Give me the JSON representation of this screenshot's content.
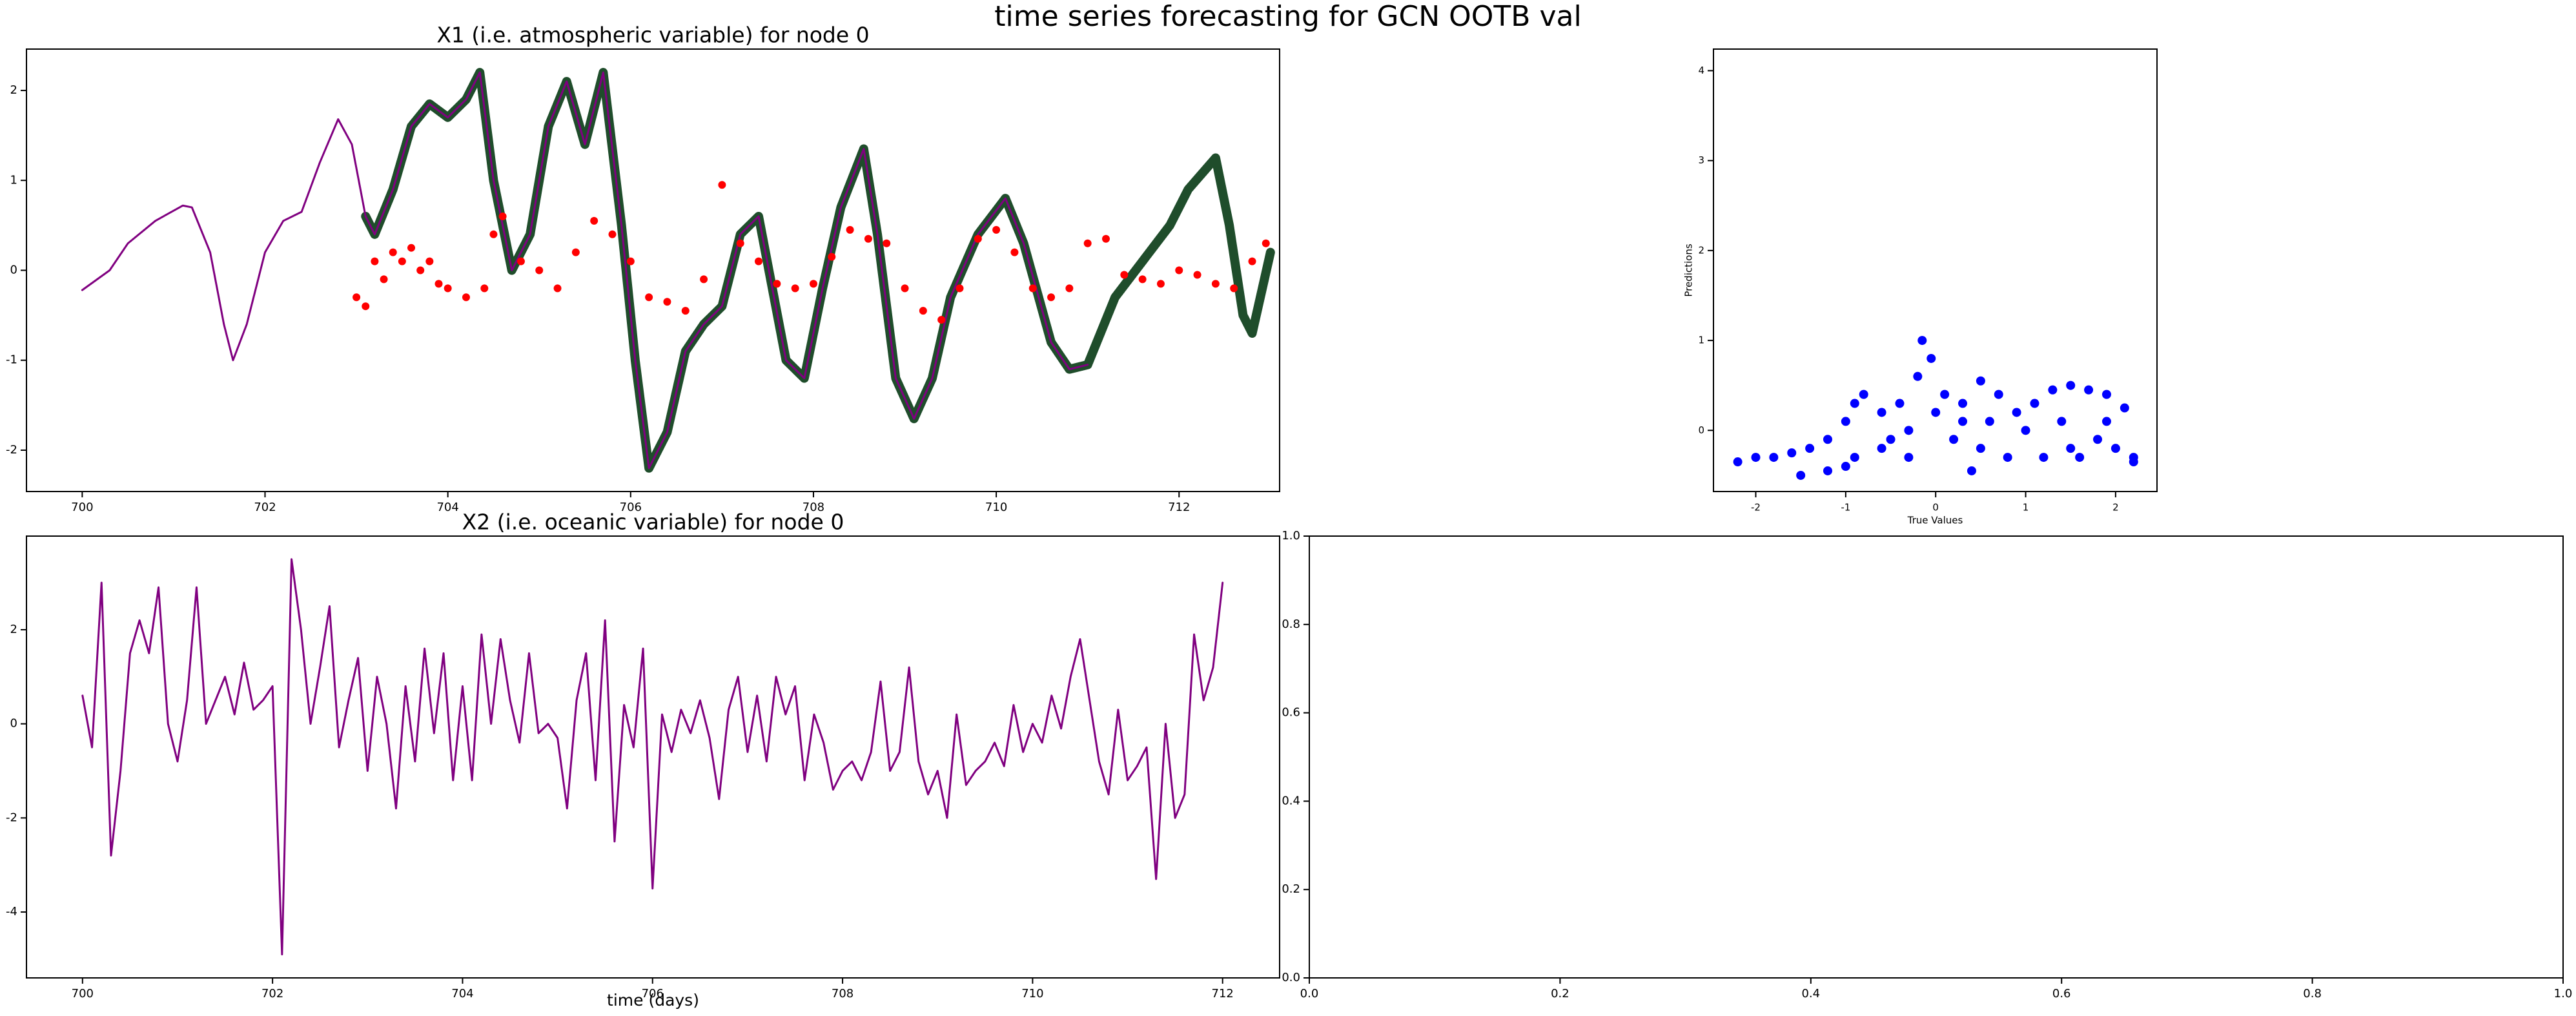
{
  "title": "time series forecasting for GCN OOTB val",
  "chart_data": [
    {
      "type": "line",
      "title": "X1 (i.e. atmospheric variable) for node 0",
      "xlim": [
        699.39,
        713.1
      ],
      "ylim": [
        -2.46,
        2.46
      ],
      "xticks": [
        700,
        702,
        704,
        706,
        708,
        710,
        712
      ],
      "yticks": [
        -2,
        -1,
        0,
        1,
        2
      ],
      "series": [
        {
          "type": "line",
          "color": "#1f4d2b",
          "width": 14,
          "x": [
            703.1,
            703.2,
            703.4,
            703.6,
            703.8,
            704.0,
            704.2,
            704.35,
            704.5,
            704.7,
            704.9,
            705.1,
            705.3,
            705.5,
            705.7,
            705.9,
            706.05,
            706.2,
            706.4,
            706.6,
            706.8,
            707.0,
            707.2,
            707.4,
            707.7,
            707.9,
            708.1,
            708.3,
            708.55,
            708.7,
            708.9,
            709.1,
            709.3,
            709.5,
            709.8,
            710.1,
            710.3,
            710.6,
            710.8,
            711.0,
            711.3,
            711.6,
            711.9,
            712.1,
            712.4,
            712.55,
            712.7,
            712.8,
            713.0
          ],
          "values": [
            0.6,
            0.4,
            0.9,
            1.6,
            1.85,
            1.7,
            1.9,
            2.2,
            1.0,
            0.0,
            0.4,
            1.6,
            2.1,
            1.4,
            2.2,
            0.5,
            -1.0,
            -2.2,
            -1.8,
            -0.9,
            -0.6,
            -0.4,
            0.4,
            0.6,
            -1.0,
            -1.2,
            -0.2,
            0.7,
            1.35,
            0.4,
            -1.2,
            -1.65,
            -1.2,
            -0.3,
            0.4,
            0.8,
            0.3,
            -0.8,
            -1.1,
            -1.05,
            -0.3,
            0.1,
            0.5,
            0.9,
            1.25,
            0.5,
            -0.5,
            -0.7,
            0.2
          ]
        },
        {
          "type": "line",
          "color": "#800080",
          "width": 3,
          "x": [
            700.0,
            700.3,
            700.5,
            700.8,
            701.1,
            701.2,
            701.4,
            701.55,
            701.65,
            701.8,
            702.0,
            702.2,
            702.4,
            702.6,
            702.8,
            702.95,
            703.1,
            703.2,
            703.4,
            703.6,
            703.8,
            704.0,
            704.2,
            704.35,
            704.5,
            704.7,
            704.9,
            705.1,
            705.3,
            705.5,
            705.7,
            705.9,
            706.05,
            706.2,
            706.4,
            706.6,
            706.8,
            707.0,
            707.2,
            707.4,
            707.7,
            707.9,
            708.1,
            708.3,
            708.55,
            708.7,
            708.9,
            709.1,
            709.3,
            709.5,
            709.8,
            710.1,
            710.3,
            710.6,
            710.8,
            711.0
          ],
          "values": [
            -0.22,
            0.0,
            0.3,
            0.55,
            0.72,
            0.7,
            0.2,
            -0.6,
            -1.0,
            -0.6,
            0.2,
            0.55,
            0.65,
            1.2,
            1.68,
            1.4,
            0.6,
            0.4,
            0.9,
            1.6,
            1.85,
            1.7,
            1.9,
            2.2,
            1.0,
            0.0,
            0.4,
            1.6,
            2.1,
            1.4,
            2.2,
            0.5,
            -1.0,
            -2.2,
            -1.8,
            -0.9,
            -0.6,
            -0.4,
            0.4,
            0.6,
            -1.0,
            -1.2,
            -0.2,
            0.7,
            1.35,
            0.4,
            -1.2,
            -1.65,
            -1.2,
            -0.3,
            0.4,
            0.8,
            0.3,
            -0.8,
            -1.1,
            -1.05
          ]
        },
        {
          "type": "scatter",
          "color": "#ff0000",
          "x": [
            703.0,
            703.1,
            703.2,
            703.3,
            703.4,
            703.5,
            703.6,
            703.7,
            703.8,
            703.9,
            704.0,
            704.2,
            704.4,
            704.5,
            704.6,
            704.8,
            705.0,
            705.2,
            705.4,
            705.6,
            705.8,
            706.0,
            706.2,
            706.4,
            706.6,
            706.8,
            707.0,
            707.2,
            707.4,
            707.6,
            707.8,
            708.0,
            708.2,
            708.4,
            708.6,
            708.8,
            709.0,
            709.2,
            709.4,
            709.6,
            709.8,
            710.0,
            710.2,
            710.4,
            710.6,
            710.8,
            711.0,
            711.2,
            711.4,
            711.6,
            711.8,
            712.0,
            712.2,
            712.4,
            712.6,
            712.8,
            712.95
          ],
          "values": [
            -0.3,
            -0.4,
            0.1,
            -0.1,
            0.2,
            0.1,
            0.25,
            0.0,
            0.1,
            -0.15,
            -0.2,
            -0.3,
            -0.2,
            0.4,
            0.6,
            0.1,
            0.0,
            -0.2,
            0.2,
            0.55,
            0.4,
            0.1,
            -0.3,
            -0.35,
            -0.45,
            -0.1,
            0.95,
            0.3,
            0.1,
            -0.15,
            -0.2,
            -0.15,
            0.15,
            0.45,
            0.35,
            0.3,
            -0.2,
            -0.45,
            -0.55,
            -0.2,
            0.35,
            0.45,
            0.2,
            -0.2,
            -0.3,
            -0.2,
            0.3,
            0.35,
            -0.05,
            -0.1,
            -0.15,
            0.0,
            -0.05,
            -0.15,
            -0.2,
            0.1,
            0.3
          ]
        }
      ]
    },
    {
      "type": "scatter",
      "xlabel": "True Values",
      "ylabel": "Predictions",
      "color": "#0000ff",
      "xlim": [
        -2.47,
        2.46
      ],
      "ylim": [
        -0.68,
        4.24
      ],
      "xticks": [
        -2,
        -1,
        0,
        1,
        2
      ],
      "yticks": [
        0,
        1,
        2,
        3,
        4
      ],
      "x": [
        -2.2,
        -2.0,
        -1.8,
        -1.6,
        -1.4,
        -1.2,
        -1.0,
        -0.9,
        -0.8,
        -0.6,
        -0.4,
        -0.2,
        -0.15,
        -0.05,
        0.1,
        0.3,
        0.5,
        0.7,
        0.9,
        1.1,
        1.3,
        1.5,
        1.7,
        1.9,
        2.1,
        2.2,
        2.0,
        1.8,
        1.5,
        1.2,
        1.0,
        0.8,
        0.5,
        0.3,
        0.0,
        -0.3,
        -0.6,
        -0.9,
        -1.2,
        -1.5,
        -1.0,
        -0.5,
        0.2,
        0.6,
        1.4,
        1.9,
        2.2,
        -0.3,
        0.4,
        1.6
      ],
      "values": [
        -0.35,
        -0.3,
        -0.3,
        -0.25,
        -0.2,
        -0.1,
        0.1,
        0.3,
        0.4,
        0.2,
        0.3,
        0.6,
        1.0,
        0.8,
        0.4,
        0.3,
        0.55,
        0.4,
        0.2,
        0.3,
        0.45,
        0.5,
        0.45,
        0.4,
        0.25,
        -0.3,
        -0.2,
        -0.1,
        -0.2,
        -0.3,
        0.0,
        -0.3,
        -0.2,
        0.1,
        0.2,
        0.0,
        -0.2,
        -0.3,
        -0.45,
        -0.5,
        -0.4,
        -0.1,
        -0.1,
        0.1,
        0.1,
        0.1,
        -0.35,
        -0.3,
        -0.45,
        -0.3
      ]
    },
    {
      "type": "line",
      "title": "X2 (i.e. oceanic variable) for node 0",
      "xlabel": "time (days)",
      "xlim": [
        699.41,
        712.6
      ],
      "ylim": [
        -5.4,
        3.99
      ],
      "xticks": [
        700,
        702,
        704,
        706,
        708,
        710,
        712
      ],
      "yticks": [
        -4,
        -2,
        0,
        2
      ],
      "series": [
        {
          "type": "line",
          "color": "#800080",
          "width": 3,
          "x": [
            700.0,
            700.1,
            700.2,
            700.3,
            700.4,
            700.5,
            700.6,
            700.7,
            700.8,
            700.9,
            701.0,
            701.1,
            701.2,
            701.3,
            701.4,
            701.5,
            701.6,
            701.7,
            701.8,
            701.9,
            702.0,
            702.1,
            702.2,
            702.3,
            702.4,
            702.5,
            702.6,
            702.7,
            702.8,
            702.9,
            703.0,
            703.1,
            703.2,
            703.3,
            703.4,
            703.5,
            703.6,
            703.7,
            703.8,
            703.9,
            704.0,
            704.1,
            704.2,
            704.3,
            704.4,
            704.5,
            704.6,
            704.7,
            704.8,
            704.9,
            705.0,
            705.1,
            705.2,
            705.3,
            705.4,
            705.5,
            705.6,
            705.7,
            705.8,
            705.9,
            706.0,
            706.1,
            706.2,
            706.3,
            706.4,
            706.5,
            706.6,
            706.7,
            706.8,
            706.9,
            707.0,
            707.1,
            707.2,
            707.3,
            707.4,
            707.5,
            707.6,
            707.7,
            707.8,
            707.9,
            708.0,
            708.1,
            708.2,
            708.3,
            708.4,
            708.5,
            708.6,
            708.7,
            708.8,
            708.9,
            709.0,
            709.1,
            709.2,
            709.3,
            709.4,
            709.5,
            709.6,
            709.7,
            709.8,
            709.9,
            710.0,
            710.1,
            710.2,
            710.3,
            710.4,
            710.5,
            710.6,
            710.7,
            710.8,
            710.9,
            711.0,
            711.1,
            711.2,
            711.3,
            711.4,
            711.5,
            711.6,
            711.7,
            711.8,
            711.9,
            712.0
          ],
          "values": [
            0.6,
            -0.5,
            3.0,
            -2.8,
            -1.0,
            1.5,
            2.2,
            1.5,
            2.9,
            0.0,
            -0.8,
            0.5,
            2.9,
            0.0,
            0.5,
            1.0,
            0.2,
            1.3,
            0.3,
            0.5,
            0.8,
            -4.9,
            3.5,
            2.0,
            0.0,
            1.2,
            2.5,
            -0.5,
            0.5,
            1.4,
            -1.0,
            1.0,
            0.0,
            -1.8,
            0.8,
            -0.8,
            1.6,
            -0.2,
            1.5,
            -1.2,
            0.8,
            -1.2,
            1.9,
            0.0,
            1.8,
            0.5,
            -0.4,
            1.5,
            -0.2,
            0.0,
            -0.3,
            -1.8,
            0.5,
            1.5,
            -1.2,
            2.2,
            -2.5,
            0.4,
            -0.5,
            1.6,
            -3.5,
            0.2,
            -0.6,
            0.3,
            -0.2,
            0.5,
            -0.3,
            -1.6,
            0.3,
            1.0,
            -0.6,
            0.6,
            -0.8,
            1.0,
            0.2,
            0.8,
            -1.2,
            0.2,
            -0.4,
            -1.4,
            -1.0,
            -0.8,
            -1.2,
            -0.6,
            0.9,
            -1.0,
            -0.6,
            1.2,
            -0.8,
            -1.5,
            -1.0,
            -2.0,
            0.2,
            -1.3,
            -1.0,
            -0.8,
            -0.4,
            -0.9,
            0.4,
            -0.6,
            0.0,
            -0.4,
            0.6,
            -0.1,
            1.0,
            1.8,
            0.5,
            -0.8,
            -1.5,
            0.3,
            -1.2,
            -0.9,
            -0.5,
            -3.3,
            0.0,
            -2.0,
            -1.5,
            1.9,
            0.5,
            1.2,
            3.0
          ]
        }
      ]
    },
    {
      "type": "empty",
      "xlim": [
        0,
        1
      ],
      "ylim": [
        0,
        1
      ],
      "xticks": [
        {
          "value": 0,
          "label": "0.0"
        },
        {
          "value": 0.2,
          "label": "0.2"
        },
        {
          "value": 0.4,
          "label": "0.4"
        },
        {
          "value": 0.6,
          "label": "0.6"
        },
        {
          "value": 0.8,
          "label": "0.8"
        },
        {
          "value": 1,
          "label": "1.0"
        }
      ],
      "yticks": [
        {
          "value": 0,
          "label": "0.0"
        },
        {
          "value": 0.2,
          "label": "0.2"
        },
        {
          "value": 0.4,
          "label": "0.4"
        },
        {
          "value": 0.6,
          "label": "0.6"
        },
        {
          "value": 0.8,
          "label": "0.8"
        },
        {
          "value": 1,
          "label": "1.0"
        }
      ]
    }
  ]
}
